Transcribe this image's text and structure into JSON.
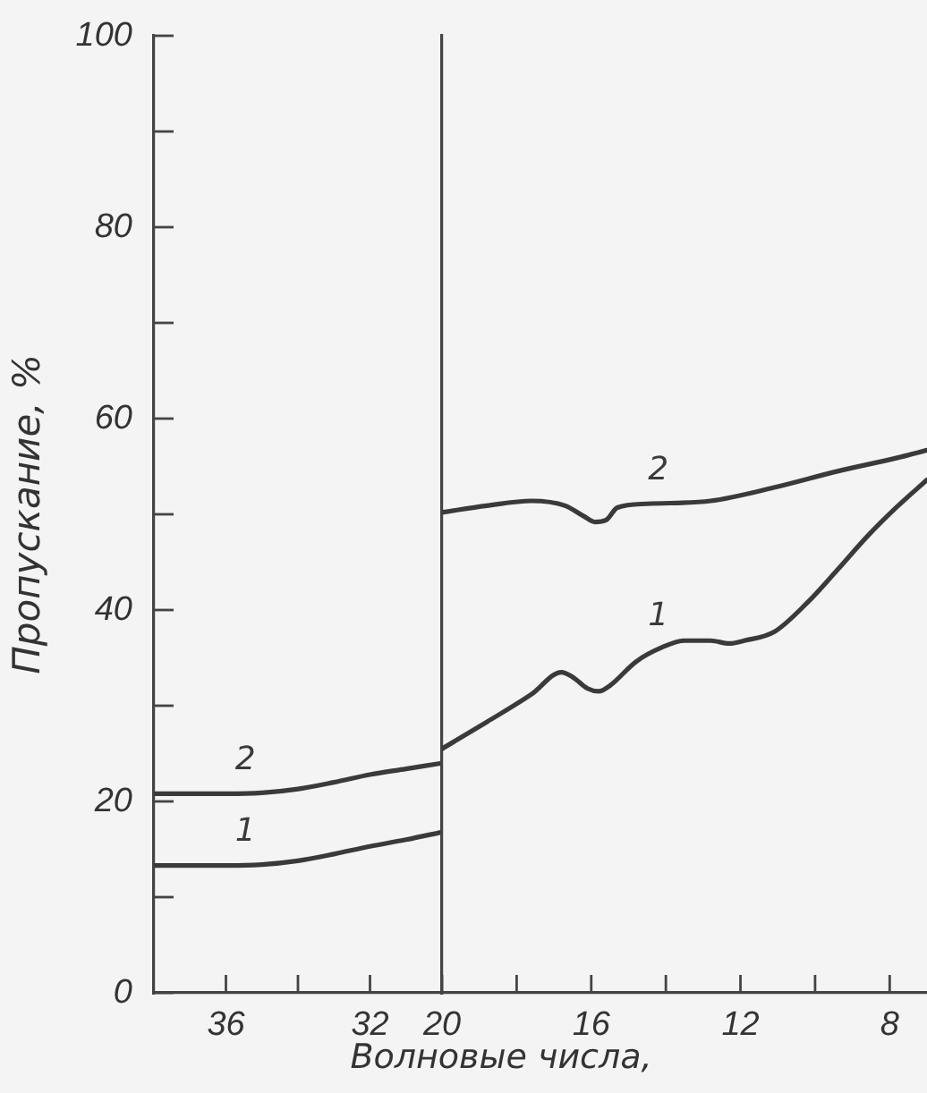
{
  "chart_data": [
    {
      "type": "line",
      "xlabel": "Волновые числа,",
      "ylabel": "Пропускание, %",
      "xlim": [
        38,
        30
      ],
      "xticks": [
        36,
        {
          "value": 34,
          "label": null
        },
        32
      ],
      "ylim": [
        0,
        100
      ],
      "yticks": [
        0,
        {
          "value": 10,
          "label": null
        },
        20,
        {
          "value": 30,
          "label": null
        },
        40,
        {
          "value": 50,
          "label": null
        },
        60,
        {
          "value": 70,
          "label": null
        },
        80,
        {
          "value": 90,
          "label": null
        },
        100
      ],
      "grid": false,
      "legend": false,
      "marker": "none",
      "line_style": "solid",
      "series": [
        {
          "name": "1",
          "color": "#3a3a3a",
          "x": [
            38,
            37,
            36,
            35,
            34,
            33,
            32,
            31,
            30
          ],
          "values": [
            13.3,
            13.3,
            13.3,
            13.4,
            13.8,
            14.5,
            15.3,
            16.0,
            16.8
          ]
        },
        {
          "name": "2",
          "color": "#3a3a3a",
          "x": [
            38,
            37,
            36,
            35,
            34,
            33,
            32,
            31,
            30
          ],
          "values": [
            20.8,
            20.8,
            20.8,
            20.9,
            21.3,
            22.0,
            22.8,
            23.4,
            24.0
          ]
        }
      ]
    },
    {
      "type": "line",
      "xlim": [
        20,
        7
      ],
      "xticks": [
        20,
        {
          "value": 18,
          "label": null
        },
        16,
        {
          "value": 14,
          "label": null
        },
        12,
        {
          "value": 10,
          "label": null
        },
        8
      ],
      "ylim": [
        0,
        100
      ],
      "tick_labels": "x",
      "grid": false,
      "legend": false,
      "marker": "none",
      "line_style": "solid",
      "series": [
        {
          "name": "1",
          "color": "#3a3a3a",
          "x": [
            20,
            18.8,
            17.6,
            16.8,
            16.5,
            16.1,
            15.8,
            15.5,
            14.8,
            14.1,
            13.5,
            12.8,
            12.3,
            11.9,
            11.1,
            10.2,
            9.4,
            8.6,
            7.8,
            7
          ],
          "values": [
            25.5,
            28.3,
            31.2,
            33.5,
            33.0,
            31.8,
            31.5,
            32.1,
            34.6,
            36.1,
            36.8,
            36.8,
            36.5,
            36.8,
            37.7,
            40.8,
            44.2,
            47.7,
            50.8,
            53.6
          ]
        },
        {
          "name": "2",
          "color": "#3a3a3a",
          "x": [
            20,
            18.8,
            17.6,
            16.7,
            16.2,
            15.9,
            15.6,
            15.3,
            14.5,
            12.8,
            11.1,
            9.4,
            7.8,
            7
          ],
          "values": [
            50.2,
            50.9,
            51.4,
            50.9,
            49.8,
            49.2,
            49.4,
            50.7,
            51.1,
            51.4,
            52.8,
            54.5,
            55.9,
            56.7
          ]
        }
      ]
    }
  ]
}
